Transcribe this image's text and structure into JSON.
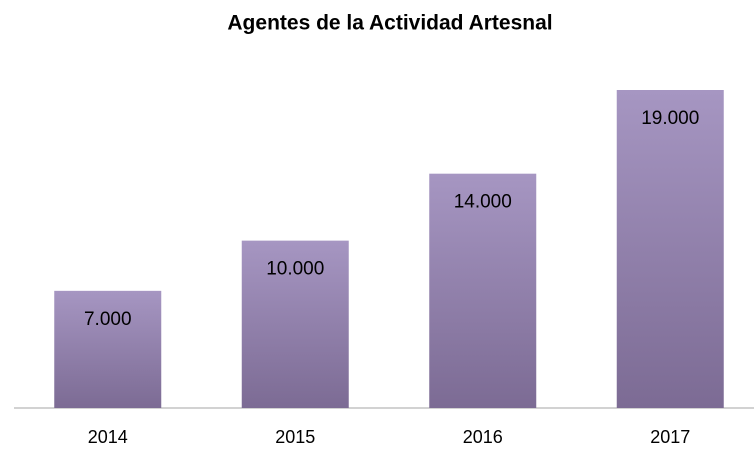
{
  "chart_data": {
    "type": "bar",
    "title": "Agentes de la Actividad Artesnal",
    "categories": [
      "2014",
      "2015",
      "2016",
      "2017"
    ],
    "values": [
      7000,
      10000,
      14000,
      19000
    ],
    "value_labels": [
      "7.000",
      "10.000",
      "14.000",
      "19.000"
    ],
    "color": "#a696c2"
  }
}
